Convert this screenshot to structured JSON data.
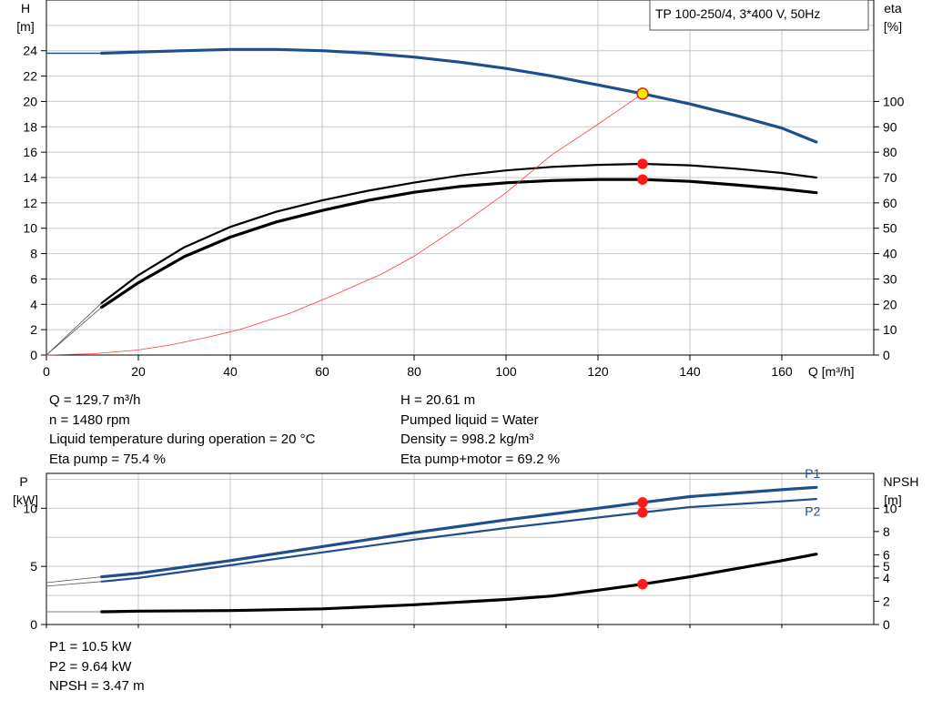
{
  "chart_data": [
    {
      "type": "line",
      "legend_box": "TP 100-250/4, 3*400 V, 50Hz",
      "legend_position": "top-right",
      "xlabel": "Q [m³/h]",
      "ylabel_left": [
        "H",
        "[m]"
      ],
      "ylabel_right": [
        "eta",
        "[%]"
      ],
      "xlim": [
        0,
        180
      ],
      "ylim_left": [
        0,
        28
      ],
      "ylim_right": [
        0,
        140
      ],
      "x_ticks": [
        "0",
        "20",
        "40",
        "60",
        "80",
        "100",
        "120",
        "140",
        "160"
      ],
      "y_ticks_left": [
        "0",
        "2",
        "4",
        "6",
        "8",
        "10",
        "12",
        "14",
        "16",
        "18",
        "20",
        "22",
        "24"
      ],
      "y_ticks_right": [
        "0",
        "10",
        "20",
        "30",
        "40",
        "50",
        "60",
        "70",
        "80",
        "90",
        "100"
      ],
      "grid": true,
      "series": [
        {
          "axis": "left",
          "color": "#1f4e8c",
          "style": "thick",
          "x": [
            12,
            20,
            30,
            40,
            50,
            60,
            70,
            80,
            90,
            100,
            110,
            120,
            129.7,
            140,
            150,
            160,
            167.5
          ],
          "y": [
            23.8,
            23.9,
            24.0,
            24.1,
            24.1,
            24.0,
            23.8,
            23.5,
            23.1,
            22.6,
            22.0,
            21.3,
            20.61,
            19.8,
            18.9,
            17.9,
            16.8
          ]
        },
        {
          "axis": "left",
          "color": "#1f4e8c",
          "style": "thin",
          "x": [
            0,
            12
          ],
          "y": [
            23.8,
            23.8
          ]
        },
        {
          "axis": "right",
          "color": "#000000",
          "style": "medium",
          "x": [
            12,
            20,
            30,
            40,
            50,
            60,
            70,
            80,
            90,
            100,
            110,
            120,
            129.7,
            140,
            150,
            160,
            167.5
          ],
          "y": [
            20.5,
            31.5,
            42.5,
            50.5,
            56.5,
            61.0,
            64.8,
            68.0,
            70.8,
            72.8,
            74.2,
            75.0,
            75.4,
            74.8,
            73.5,
            71.8,
            70.0
          ]
        },
        {
          "axis": "right",
          "color": "#000000",
          "style": "thick",
          "x": [
            12,
            20,
            30,
            40,
            50,
            60,
            70,
            80,
            90,
            100,
            110,
            120,
            129.7,
            140,
            150,
            160,
            167.5
          ],
          "y": [
            18.8,
            28.5,
            38.8,
            46.5,
            52.5,
            57.0,
            61.0,
            64.2,
            66.5,
            67.9,
            68.8,
            69.2,
            69.2,
            68.5,
            67.1,
            65.5,
            64.0
          ]
        },
        {
          "axis": "right",
          "color": "#555555",
          "style": "hair",
          "x": [
            0,
            12
          ],
          "y": [
            0,
            20.5
          ]
        },
        {
          "axis": "right",
          "color": "#555555",
          "style": "hair",
          "x": [
            0,
            12
          ],
          "y": [
            0,
            18.8
          ]
        },
        {
          "axis": "left",
          "color": "#ff3b3b",
          "style": "hair",
          "x": [
            0,
            10,
            20,
            27,
            35,
            42,
            53,
            63,
            73,
            80,
            90,
            100,
            110,
            120,
            129.7
          ],
          "y": [
            0,
            0.1,
            0.4,
            0.8,
            1.4,
            2.0,
            3.3,
            4.8,
            6.4,
            7.8,
            10.2,
            12.8,
            15.8,
            18.2,
            20.61
          ]
        }
      ],
      "operating_points": [
        {
          "axis": "left",
          "x": 129.7,
          "y": 20.61,
          "fill": "#ffe600",
          "stroke": "#e02020",
          "r": 6
        },
        {
          "axis": "right",
          "x": 129.7,
          "y": 75.4,
          "fill": "#ff1a1a",
          "stroke": "#ff1a1a",
          "r": 5
        },
        {
          "axis": "right",
          "x": 129.7,
          "y": 69.2,
          "fill": "#ff1a1a",
          "stroke": "#ff1a1a",
          "r": 5
        }
      ]
    },
    {
      "type": "line",
      "ylabel_left": [
        "P",
        "[kW]"
      ],
      "ylabel_right": [
        "NPSH",
        "[m]"
      ],
      "xlim": [
        0,
        180
      ],
      "ylim_left": [
        0,
        13
      ],
      "ylim_right": [
        0,
        13
      ],
      "y_ticks_left": [
        "0",
        "5",
        "10"
      ],
      "y_ticks_right": [
        "0",
        "2",
        "4",
        "5",
        "6",
        "8",
        "10"
      ],
      "grid": true,
      "series": [
        {
          "name": "P1",
          "axis": "left",
          "color": "#1f4e8c",
          "style": "thick",
          "x": [
            12,
            20,
            40,
            60,
            80,
            100,
            120,
            129.7,
            140,
            160,
            167.5
          ],
          "y": [
            4.1,
            4.4,
            5.5,
            6.7,
            7.9,
            9.0,
            10.0,
            10.5,
            11.0,
            11.6,
            11.8
          ]
        },
        {
          "name": "P2",
          "axis": "left",
          "color": "#1f4e8c",
          "style": "medium",
          "x": [
            12,
            20,
            40,
            60,
            80,
            100,
            120,
            129.7,
            140,
            160,
            167.5
          ],
          "y": [
            3.7,
            4.0,
            5.1,
            6.2,
            7.3,
            8.3,
            9.2,
            9.64,
            10.1,
            10.6,
            10.8
          ]
        },
        {
          "axis": "left",
          "color": "#555555",
          "style": "hair",
          "x": [
            0,
            12
          ],
          "y": [
            3.6,
            4.1
          ]
        },
        {
          "axis": "left",
          "color": "#555555",
          "style": "hair",
          "x": [
            0,
            12
          ],
          "y": [
            3.3,
            3.7
          ]
        },
        {
          "name": "NPSH",
          "axis": "right",
          "color": "#000000",
          "style": "thick",
          "x": [
            12,
            20,
            40,
            60,
            80,
            100,
            110,
            120,
            129.7,
            140,
            150,
            160,
            167.5
          ],
          "y": [
            1.1,
            1.15,
            1.2,
            1.35,
            1.7,
            2.15,
            2.45,
            2.95,
            3.47,
            4.1,
            4.8,
            5.5,
            6.05
          ]
        },
        {
          "axis": "right",
          "color": "#555555",
          "style": "hair",
          "x": [
            0,
            12
          ],
          "y": [
            1.1,
            1.1
          ]
        }
      ],
      "series_labels": [
        {
          "text": "P1",
          "x": 165,
          "y": 13.0
        },
        {
          "text": "P2",
          "x": 165,
          "y": 9.75
        }
      ],
      "operating_points": [
        {
          "axis": "left",
          "x": 129.7,
          "y": 10.5,
          "fill": "#ff1a1a",
          "stroke": "#ff1a1a",
          "r": 5
        },
        {
          "axis": "left",
          "x": 129.7,
          "y": 9.64,
          "fill": "#ff1a1a",
          "stroke": "#ff1a1a",
          "r": 5
        },
        {
          "axis": "right",
          "x": 129.7,
          "y": 3.47,
          "fill": "#ff1a1a",
          "stroke": "#ff1a1a",
          "r": 5
        }
      ]
    }
  ],
  "info_left": [
    "Q = 129.7 m³/h",
    "n = 1480 rpm",
    "Liquid temperature during operation = 20 °C",
    "Eta pump = 75.4 %"
  ],
  "info_right": [
    "H = 20.61 m",
    "Pumped liquid = Water",
    "Density = 998.2 kg/m³",
    "Eta pump+motor = 69.2 %"
  ],
  "info_bottom": [
    "P1 = 10.5 kW",
    "P2 = 9.64 kW",
    "NPSH = 3.47 m"
  ]
}
